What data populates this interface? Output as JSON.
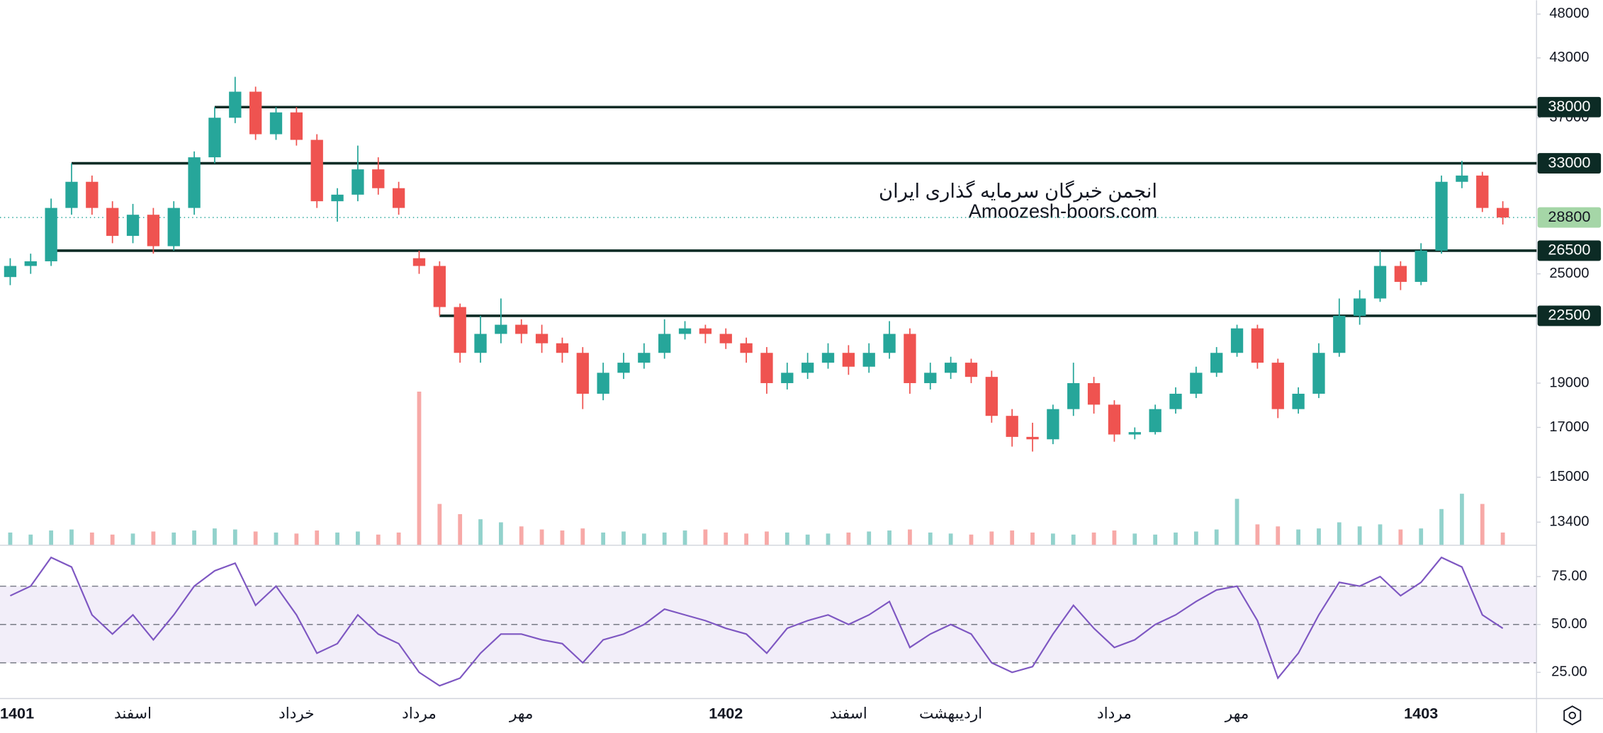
{
  "chart_data": {
    "type": "candlestick",
    "categories": [
      "1401",
      null,
      null,
      null,
      null,
      null,
      "اسفند",
      null,
      null,
      null,
      null,
      null,
      null,
      null,
      "خرداد",
      null,
      null,
      null,
      null,
      null,
      "مرداد",
      null,
      null,
      null,
      null,
      "مهر",
      null,
      null,
      null,
      null,
      null,
      null,
      null,
      null,
      null,
      "1402",
      null,
      null,
      null,
      null,
      null,
      "اسفند",
      null,
      null,
      null,
      null,
      "اردیبهشت",
      null,
      null,
      null,
      null,
      null,
      null,
      null,
      "مرداد",
      null,
      null,
      null,
      null,
      null,
      "مهر",
      null,
      null,
      null,
      null,
      null,
      null,
      null,
      null,
      "1403",
      null,
      null,
      null,
      null
    ],
    "open": [
      24800,
      25500,
      25800,
      29500,
      31500,
      29500,
      27500,
      29000,
      26800,
      29500,
      33500,
      37000,
      39500,
      35500,
      37500,
      35000,
      30000,
      30500,
      32500,
      31000,
      26000,
      25500,
      23000,
      20500,
      21500,
      22000,
      21500,
      21000,
      20500,
      18500,
      19500,
      20000,
      20500,
      21500,
      21800,
      21500,
      21000,
      20500,
      19000,
      19500,
      20000,
      20500,
      19800,
      20500,
      21500,
      19000,
      19500,
      20000,
      19300,
      17500,
      16600,
      16500,
      17800,
      19000,
      18000,
      16700,
      16800,
      17800,
      18500,
      19500,
      20500,
      21800,
      20000,
      17800,
      18500,
      20500,
      22500,
      23500,
      25500,
      24500,
      26500,
      31500,
      32000,
      29500
    ],
    "high": [
      26000,
      26300,
      30200,
      33000,
      32000,
      30000,
      29800,
      29500,
      30000,
      34000,
      38000,
      41000,
      40000,
      38000,
      38000,
      35500,
      31000,
      34500,
      33500,
      31500,
      26500,
      25800,
      23200,
      22500,
      23500,
      22300,
      22000,
      21300,
      20800,
      20000,
      20500,
      21000,
      22300,
      22200,
      22000,
      21800,
      21300,
      20800,
      20000,
      20500,
      21000,
      20900,
      21000,
      22200,
      21800,
      20000,
      20300,
      20200,
      19600,
      17800,
      17200,
      18000,
      20000,
      19300,
      18200,
      17000,
      18000,
      18800,
      19800,
      20800,
      22000,
      22000,
      20200,
      18800,
      21000,
      23500,
      24000,
      26500,
      25800,
      27000,
      32000,
      33200,
      32300,
      30000
    ],
    "low": [
      24300,
      25000,
      25500,
      29000,
      29000,
      27000,
      27000,
      26300,
      26500,
      29000,
      33000,
      36500,
      35000,
      35000,
      34500,
      29500,
      28500,
      30000,
      30500,
      29000,
      25000,
      22500,
      20000,
      20000,
      21000,
      21000,
      20500,
      20000,
      17800,
      18200,
      19200,
      19700,
      20200,
      21200,
      21000,
      20700,
      20000,
      18500,
      18700,
      19200,
      19700,
      19400,
      19500,
      20200,
      18500,
      18700,
      19200,
      19000,
      17200,
      16200,
      16000,
      16300,
      17500,
      17600,
      16400,
      16500,
      16700,
      17600,
      18300,
      19300,
      20300,
      19700,
      17400,
      17600,
      18300,
      20300,
      22000,
      23300,
      24000,
      24300,
      26300,
      31000,
      29200,
      28300
    ],
    "close": [
      25500,
      25800,
      29500,
      31500,
      29500,
      27500,
      29000,
      26800,
      29500,
      33500,
      37000,
      39500,
      35500,
      37500,
      35000,
      30000,
      30500,
      32500,
      31000,
      29500,
      25500,
      23000,
      20500,
      21500,
      22000,
      21500,
      21000,
      20500,
      18500,
      19500,
      20000,
      20500,
      21500,
      21800,
      21500,
      21000,
      20500,
      19000,
      19500,
      20000,
      20500,
      19800,
      20500,
      21500,
      19000,
      19500,
      20000,
      19300,
      17500,
      16600,
      16500,
      17800,
      19000,
      18000,
      16700,
      16800,
      17800,
      18500,
      19500,
      20500,
      21800,
      20000,
      17800,
      18500,
      20500,
      22500,
      23500,
      25500,
      24500,
      26500,
      31500,
      32000,
      29500,
      28800
    ],
    "up_color": "#26a69a",
    "down_color": "#ef5350",
    "ylim": [
      12660,
      49700
    ],
    "log_scale": true,
    "yticks": [
      13400,
      15000,
      17000,
      19000,
      25000,
      37000,
      43000,
      48000
    ],
    "levels": [
      38000,
      33000,
      26500,
      22500
    ],
    "volume": [
      12,
      10,
      14,
      15,
      12,
      10,
      11,
      13,
      12,
      14,
      16,
      15,
      13,
      12,
      11,
      14,
      12,
      13,
      10,
      12,
      150,
      40,
      30,
      25,
      22,
      18,
      15,
      14,
      16,
      12,
      13,
      11,
      12,
      14,
      15,
      12,
      11,
      13,
      12,
      10,
      11,
      12,
      13,
      14,
      15,
      12,
      11,
      10,
      13,
      14,
      12,
      11,
      10,
      12,
      14,
      11,
      10,
      12,
      13,
      15,
      45,
      20,
      18,
      15,
      16,
      22,
      18,
      20,
      15,
      16,
      35,
      50,
      40,
      12
    ],
    "volume_lim": [
      0,
      160
    ],
    "rsi": {
      "values": [
        65,
        70,
        85,
        80,
        55,
        45,
        55,
        42,
        55,
        70,
        78,
        82,
        60,
        70,
        55,
        35,
        40,
        55,
        45,
        40,
        25,
        18,
        22,
        35,
        45,
        45,
        42,
        40,
        30,
        42,
        45,
        50,
        58,
        55,
        52,
        48,
        45,
        35,
        48,
        52,
        55,
        50,
        55,
        62,
        38,
        45,
        50,
        45,
        30,
        25,
        28,
        45,
        60,
        48,
        38,
        42,
        50,
        55,
        62,
        68,
        70,
        52,
        22,
        35,
        55,
        72,
        70,
        75,
        65,
        72,
        85,
        80,
        55,
        48
      ],
      "color": "#7e57c2",
      "ylim": [
        11.6,
        91.6
      ],
      "yticks": [
        {
          "value": 25,
          "label": "25.00"
        },
        {
          "value": 50,
          "label": "50.00"
        },
        {
          "value": 75,
          "label": "75.00"
        }
      ],
      "levels": [
        30,
        50,
        70
      ]
    }
  },
  "watermark": {
    "line1": "انجمن خبرگان سرمایه گذاری ایران",
    "line2": "Amoozesh-boors.com"
  }
}
